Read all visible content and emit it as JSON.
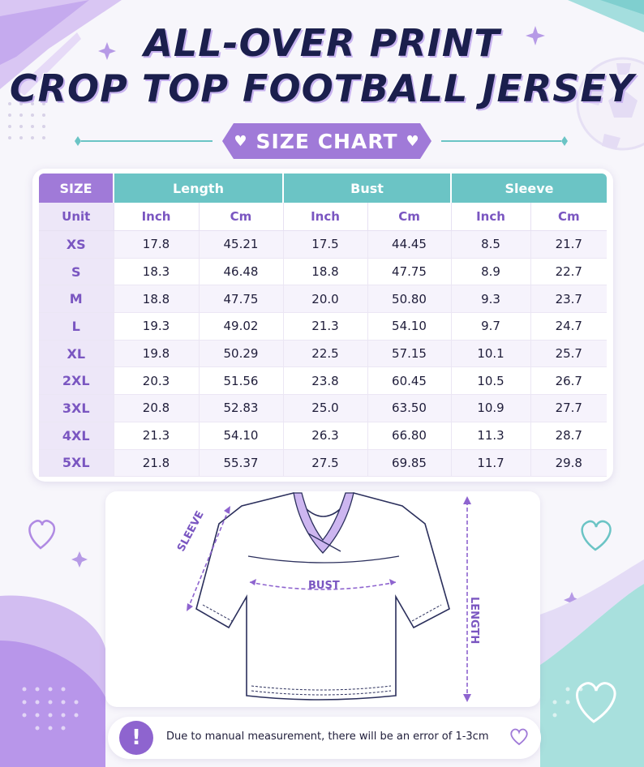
{
  "title": {
    "line1": "ALL-OVER PRINT",
    "line2": "CROP TOP FOOTBALL JERSEY"
  },
  "banner": {
    "label": "SIZE CHART",
    "icon": "heart-icon"
  },
  "table": {
    "groups": [
      "SIZE",
      "Length",
      "Bust",
      "Sleeve"
    ],
    "unit_row_label": "Unit",
    "units": [
      "Inch",
      "Cm",
      "Inch",
      "Cm",
      "Inch",
      "Cm"
    ],
    "rows": [
      [
        "XS",
        "17.8",
        "45.21",
        "17.5",
        "44.45",
        "8.5",
        "21.7"
      ],
      [
        "S",
        "18.3",
        "46.48",
        "18.8",
        "47.75",
        "8.9",
        "22.7"
      ],
      [
        "M",
        "18.8",
        "47.75",
        "20.0",
        "50.80",
        "9.3",
        "23.7"
      ],
      [
        "L",
        "19.3",
        "49.02",
        "21.3",
        "54.10",
        "9.7",
        "24.7"
      ],
      [
        "XL",
        "19.8",
        "50.29",
        "22.5",
        "57.15",
        "10.1",
        "25.7"
      ],
      [
        "2XL",
        "20.3",
        "51.56",
        "23.8",
        "60.45",
        "10.5",
        "26.7"
      ],
      [
        "3XL",
        "20.8",
        "52.83",
        "25.0",
        "63.50",
        "10.9",
        "27.7"
      ],
      [
        "4XL",
        "21.3",
        "54.10",
        "26.3",
        "66.80",
        "11.3",
        "28.7"
      ],
      [
        "5XL",
        "21.8",
        "55.37",
        "27.5",
        "69.85",
        "11.7",
        "29.8"
      ]
    ]
  },
  "diagram": {
    "bust_label": "BUST",
    "sleeve_label": "SLEEVE",
    "length_label": "LENGTH"
  },
  "note": {
    "icon": "exclamation-icon",
    "text": "Due to manual measurement, there will be an error of 1-3cm"
  },
  "colors": {
    "purple": "#a07ad8",
    "teal": "#6bc4c5",
    "navy": "#1b1f4d"
  }
}
